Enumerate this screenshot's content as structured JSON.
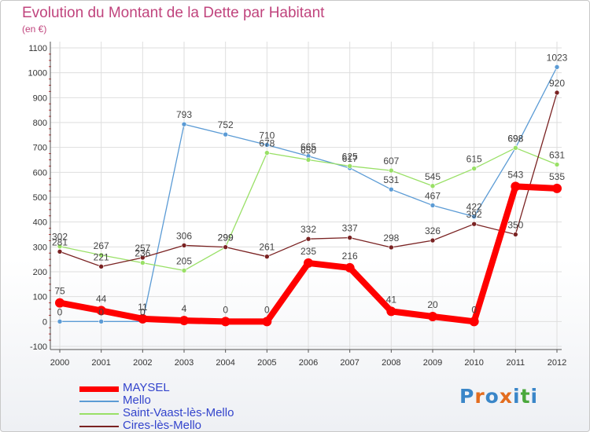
{
  "title": "Evolution du Montant de la Dette par Habitant",
  "subtitle": "(en €)",
  "brand": {
    "letters": [
      "P",
      "r",
      "o",
      "x",
      "i",
      "t",
      "i"
    ],
    "colors": [
      "#3a86c8",
      "#e36c1e",
      "#3a86c8",
      "#e36c1e",
      "#3a86c8",
      "#4aa83c",
      "#3a86c8"
    ]
  },
  "chart_data": {
    "type": "line",
    "x": [
      "2000",
      "2001",
      "2002",
      "2003",
      "2004",
      "2005",
      "2006",
      "2007",
      "2008",
      "2009",
      "2010",
      "2011",
      "2012"
    ],
    "ylim": [
      -100,
      1100
    ],
    "yticks": [
      "-100",
      "0",
      "100",
      "200",
      "300",
      "400",
      "500",
      "600",
      "700",
      "800",
      "900",
      "1000",
      "1100"
    ],
    "grid": true,
    "legend_position": "bottom-left",
    "series": [
      {
        "name": "MAYSEL",
        "color": "#ff0000",
        "width": 8,
        "marker": 6,
        "values": [
          75,
          44,
          11,
          4,
          0,
          0,
          235,
          216,
          41,
          20,
          0,
          543,
          535
        ],
        "labels": [
          "75",
          "44",
          "11",
          "4",
          "0",
          "0",
          "235",
          "216",
          "41",
          "20",
          "0",
          "543",
          "535"
        ]
      },
      {
        "name": "Mello",
        "color": "#5b9bd5",
        "width": 1.3,
        "marker": 3,
        "values": [
          0,
          0,
          0,
          793,
          752,
          710,
          665,
          617,
          531,
          467,
          422,
          698,
          1023
        ],
        "labels": [
          "0",
          "0",
          "0",
          "793",
          "752",
          "710",
          "665",
          "617",
          "531",
          "467",
          "422",
          "698",
          "1023"
        ]
      },
      {
        "name": "Saint-Vaast-lès-Mello",
        "color": "#99e066",
        "width": 1.3,
        "marker": 3,
        "values": [
          302,
          267,
          236,
          205,
          299,
          678,
          650,
          625,
          607,
          545,
          615,
          698,
          631
        ],
        "labels": [
          "302",
          "267",
          "236",
          "205",
          "299",
          "678",
          "650",
          "625",
          "607",
          "545",
          "615",
          "698",
          "631"
        ]
      },
      {
        "name": "Cires-lès-Mello",
        "color": "#7a2222",
        "width": 1.3,
        "marker": 3,
        "values": [
          281,
          221,
          257,
          306,
          299,
          261,
          332,
          337,
          298,
          326,
          392,
          350,
          920
        ],
        "labels": [
          "281",
          "221",
          "257",
          "306",
          "299",
          "261",
          "332",
          "337",
          "298",
          "326",
          "392",
          "350",
          "920"
        ]
      }
    ]
  }
}
